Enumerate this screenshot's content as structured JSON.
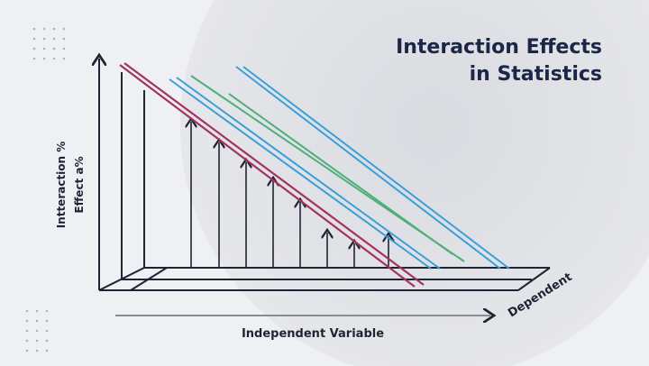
{
  "title": {
    "line1": "Interaction Effects",
    "line2": "in Statistics"
  },
  "y_axis_label": {
    "line1": "Intteraction %",
    "line2": "Effect a%"
  },
  "x_axis_label": "Independent Variable",
  "depth_axis_label": "Dependent",
  "colors": {
    "title": "#1c2747",
    "line_red": "#a3335f",
    "line_blue": "#3a9fd8",
    "line_green": "#4fae7a",
    "axis": "#1e2433",
    "background": "#eff0f3"
  }
}
